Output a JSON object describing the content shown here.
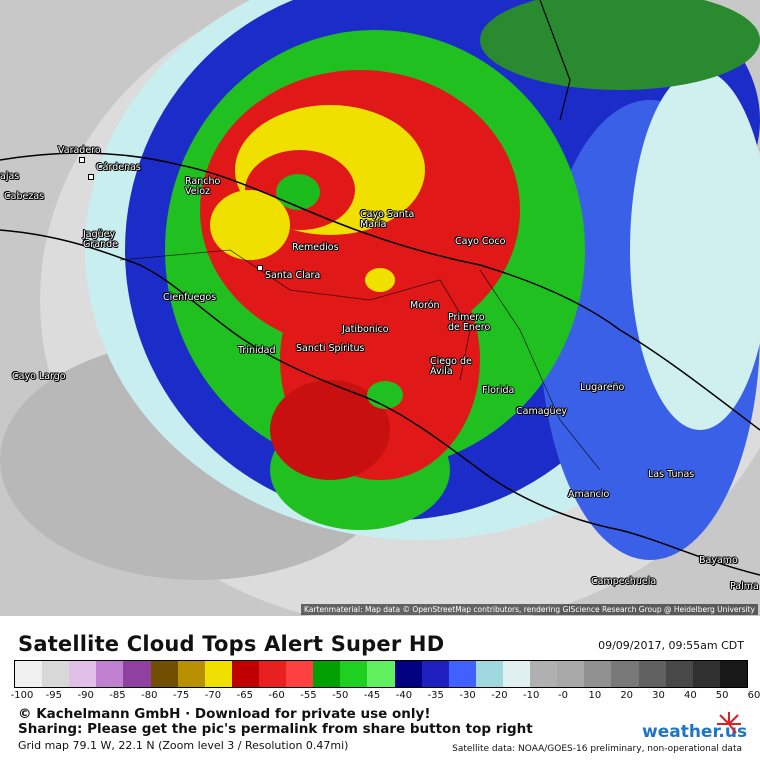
{
  "map": {
    "attribution": "Kartenmaterial: Map data © OpenStreetMap contributors, rendering GIScience Research Group @ Heidelberg University",
    "places": [
      {
        "id": "varadero",
        "label": "Varadero"
      },
      {
        "id": "cardenas",
        "label": "Cárdenas"
      },
      {
        "id": "rancho-veloz",
        "label": "Rancho Veloz"
      },
      {
        "id": "cabezas",
        "label": "Cabezas"
      },
      {
        "id": "jaguey-grande",
        "label": "Jagüey Grande"
      },
      {
        "id": "cayo-santa-maria",
        "label": "Cayo Santa María"
      },
      {
        "id": "remedios",
        "label": "Remedios"
      },
      {
        "id": "cayo-coco",
        "label": "Cayo Coco"
      },
      {
        "id": "santa-clara",
        "label": "Santa Clara"
      },
      {
        "id": "cienfuegos",
        "label": "Cienfuegos"
      },
      {
        "id": "moron",
        "label": "Morón"
      },
      {
        "id": "primero-de-enero",
        "label": "Primero de Enero"
      },
      {
        "id": "jatibonico",
        "label": "Jatibonico"
      },
      {
        "id": "trinidad",
        "label": "Trinidad"
      },
      {
        "id": "sancti-spiritus",
        "label": "Sancti Spíritus"
      },
      {
        "id": "ciego-de-avila",
        "label": "Ciego de Ávila"
      },
      {
        "id": "cayo-largo",
        "label": "Cayo Largo"
      },
      {
        "id": "florida",
        "label": "Florida"
      },
      {
        "id": "lugareno",
        "label": "Lugareño"
      },
      {
        "id": "camaguey",
        "label": "Camagüey"
      },
      {
        "id": "las-tunas",
        "label": "Las Tunas"
      },
      {
        "id": "amancio",
        "label": "Amancio"
      },
      {
        "id": "bayamo",
        "label": "Bayamo"
      },
      {
        "id": "campechuela",
        "label": "Campechuela"
      },
      {
        "id": "palma",
        "label": "Palma"
      },
      {
        "id": "cajas-partial",
        "label": "ajas"
      }
    ]
  },
  "footer": {
    "title": "Satellite Cloud Tops Alert Super HD",
    "datetime": "09/09/2017, 09:55am CDT",
    "scale_ticks": [
      "-100",
      "-95",
      "-90",
      "-85",
      "-80",
      "-75",
      "-70",
      "-65",
      "-60",
      "-55",
      "-50",
      "-45",
      "-40",
      "-35",
      "-30",
      "-20",
      "-10",
      "-0",
      "10",
      "20",
      "30",
      "40",
      "50",
      "60"
    ],
    "copyright": "© Kachelmann GmbH · Download for private use only!",
    "sharing": "Sharing: Please get the pic's permalink from share button top right",
    "grid_info": "Grid map 79.1 W, 22.1 N (Zoom level 3 / Resolution 0.47mi)",
    "logo": "weather.us",
    "satellite_source": "Satellite data: NOAA/GOES-16 preliminary, non-operational data"
  },
  "colors": {
    "scale": [
      "#f0f0f0",
      "#d8d8d8",
      "#e0c0e8",
      "#c080d0",
      "#9040a0",
      "#705000",
      "#b89000",
      "#f0e000",
      "#c00000",
      "#e82020",
      "#ff4040",
      "#00a000",
      "#20d020",
      "#60f060",
      "#000080",
      "#2020c0",
      "#4060ff",
      "#a0d8e0",
      "#e0f0f0",
      "#b0b0b0",
      "#a8a8a8",
      "#909090",
      "#787878",
      "#606060",
      "#484848",
      "#303030",
      "#181818"
    ]
  }
}
